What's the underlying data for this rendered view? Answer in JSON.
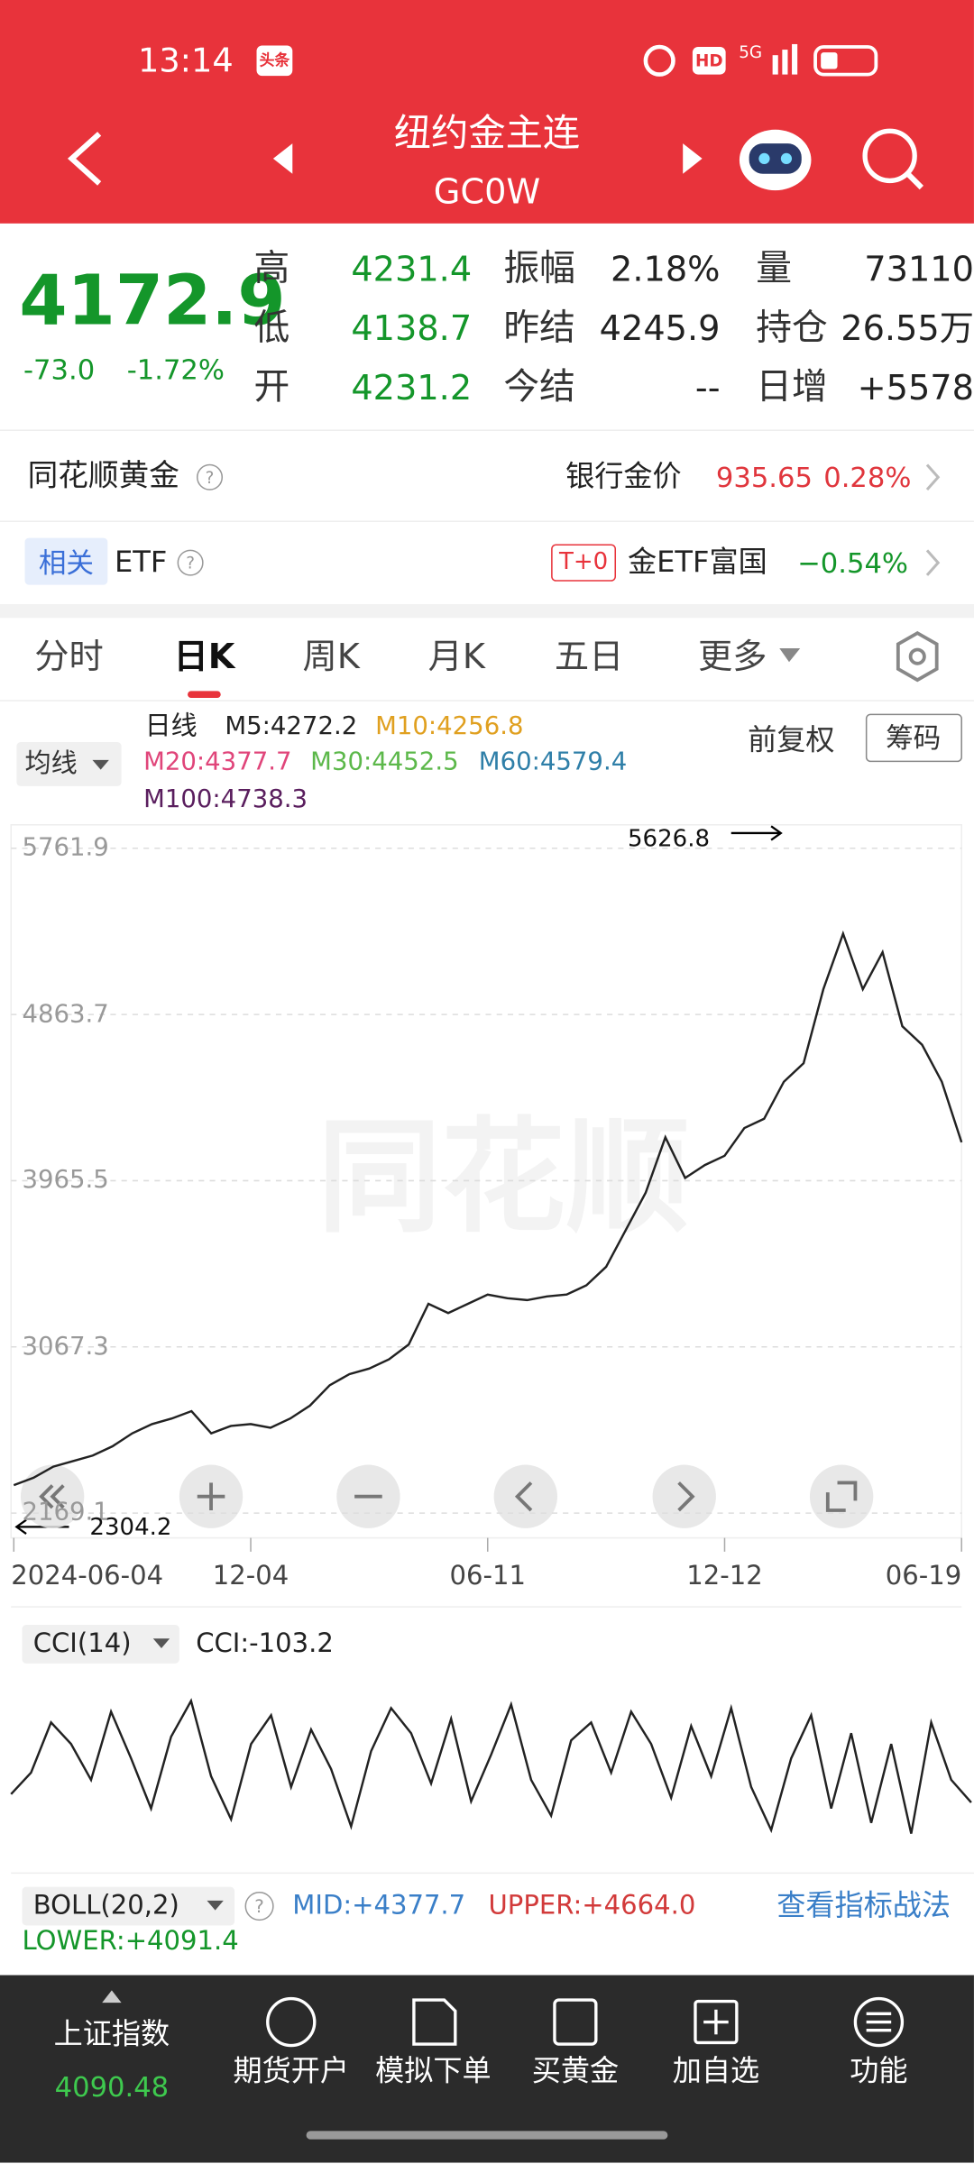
{
  "status_bar": {
    "time": "13:14",
    "badge": "头条",
    "network": "5G",
    "hd": "HD"
  },
  "header": {
    "title": "纽约金主连",
    "code": "GC0W"
  },
  "quote": {
    "price": "4172.9",
    "change": "-73.0",
    "change_pct": "-1.72%",
    "stats": [
      {
        "label": "高",
        "value": "4231.4",
        "color": "#14962a"
      },
      {
        "label": "振幅",
        "value": "2.18%",
        "color": "#222222"
      },
      {
        "label": "量",
        "value": "73110",
        "color": "#222222"
      },
      {
        "label": "低",
        "value": "4138.7",
        "color": "#14962a"
      },
      {
        "label": "昨结",
        "value": "4245.9",
        "color": "#222222"
      },
      {
        "label": "持仓",
        "value": "26.55万",
        "color": "#222222"
      },
      {
        "label": "开",
        "value": "4231.2",
        "color": "#14962a"
      },
      {
        "label": "今结",
        "value": "--",
        "color": "#222222"
      },
      {
        "label": "日增",
        "value": "+5578",
        "color": "#222222"
      }
    ]
  },
  "gold_row": {
    "label": "同花顺黄金",
    "bank_label": "银行金价",
    "bank_price": "935.65",
    "bank_change": "0.28%"
  },
  "etf_row": {
    "tag": "相关",
    "label": "ETF",
    "badge": "T+0",
    "name": "金ETF富国",
    "change": "−0.54%"
  },
  "tabs": [
    "分时",
    "日K",
    "周K",
    "月K",
    "五日",
    "更多"
  ],
  "ma_legend": {
    "selector": "均线",
    "period": "日线",
    "adjust": "前复权",
    "chips": "筹码",
    "items": [
      {
        "text": "M5:4272.2",
        "color": "#222222"
      },
      {
        "text": "M10:4256.8",
        "color": "#e0a020"
      },
      {
        "text": "M20:4377.7",
        "color": "#e0457a"
      },
      {
        "text": "M30:4452.5",
        "color": "#5cb84a"
      },
      {
        "text": "M60:4579.4",
        "color": "#2f7fa8"
      },
      {
        "text": "M100:4738.3",
        "color": "#5a1e5e"
      }
    ]
  },
  "chart_data": [
    {
      "type": "line",
      "annotations": {
        "max_label": "5626.8",
        "min_label": "2304.2"
      },
      "xlim": [
        0,
        48
      ],
      "xticks": [
        {
          "value": 0,
          "label": "2024-06-04"
        },
        {
          "value": 12,
          "label": "12-04"
        },
        {
          "value": 24,
          "label": "06-11"
        },
        {
          "value": 36,
          "label": "12-12"
        },
        {
          "value": 48,
          "label": "06-19"
        }
      ],
      "ylim": [
        2169.1,
        5761.9
      ],
      "yticks": [
        5761.9,
        4863.7,
        3965.5,
        3067.3,
        2169.1
      ],
      "grid": true,
      "series": [
        {
          "color": "#222222",
          "values": [
            2320,
            2360,
            2420,
            2450,
            2480,
            2530,
            2600,
            2650,
            2680,
            2720,
            2600,
            2640,
            2650,
            2630,
            2680,
            2750,
            2860,
            2920,
            2950,
            3000,
            3080,
            3300,
            3250,
            3300,
            3350,
            3330,
            3320,
            3340,
            3350,
            3400,
            3500,
            3700,
            3900,
            4200,
            3980,
            4050,
            4100,
            4250,
            4300,
            4500,
            4600,
            5000,
            5300,
            5000,
            5200,
            4800,
            4700,
            4500,
            4172.9
          ]
        }
      ]
    },
    {
      "type": "line",
      "title": "CCI(14)",
      "subtitle": "CCI:-103.2",
      "xlim": [
        0,
        48
      ],
      "ylim": [
        -250,
        250
      ],
      "series": [
        {
          "color": "#222222",
          "values": [
            -80,
            -20,
            120,
            60,
            -40,
            150,
            20,
            -120,
            80,
            180,
            -30,
            -150,
            60,
            140,
            -60,
            100,
            -10,
            -170,
            40,
            160,
            90,
            -50,
            130,
            -100,
            30,
            170,
            -40,
            -140,
            70,
            120,
            -20,
            150,
            60,
            -90,
            110,
            -30,
            160,
            -60,
            -180,
            20,
            140,
            -120,
            90,
            -160,
            60,
            -190,
            120,
            -40,
            -103.2
          ]
        }
      ]
    }
  ],
  "boll": {
    "label": "BOLL(20,2)",
    "mid": "MID:+4377.7",
    "upper": "UPPER:+4664.0",
    "lower": "LOWER:+4091.4",
    "link": "查看指标战法"
  },
  "bottom_nav": {
    "index_label": "上证指数",
    "index_value": "4090.48",
    "items": [
      "期货开户",
      "模拟下单",
      "买黄金",
      "加自选",
      "功能"
    ]
  }
}
